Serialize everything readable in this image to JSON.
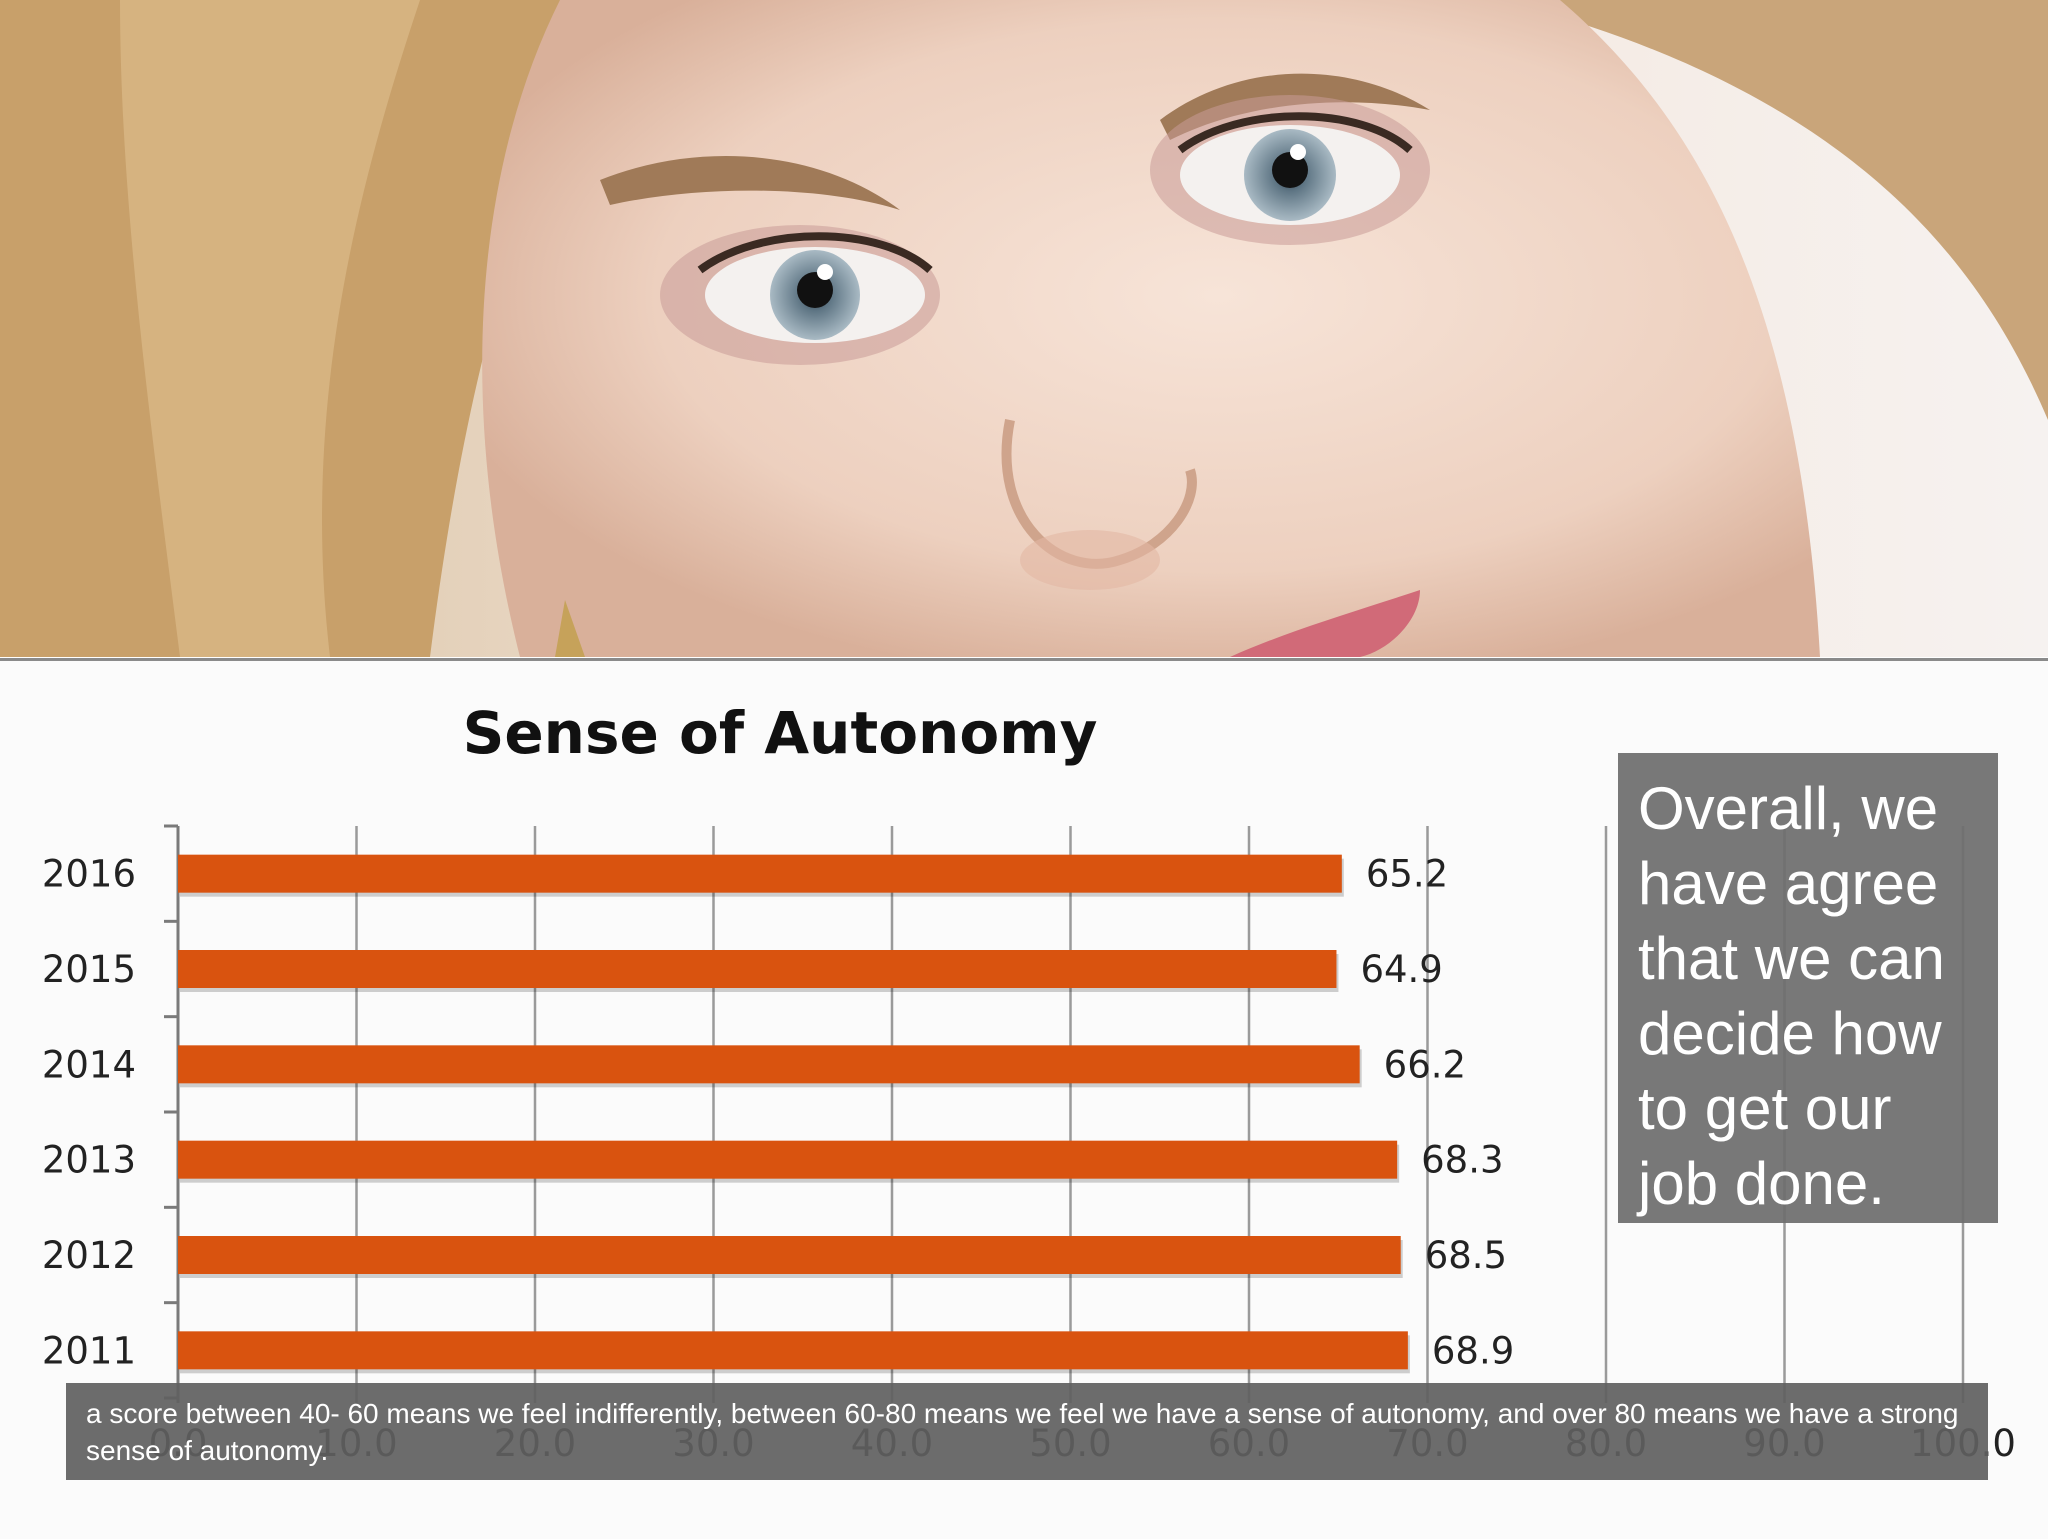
{
  "colors": {
    "bar": "#d9530f",
    "grid": "#9a9a9a",
    "callout_bg": "#6e6e6e",
    "footnote_bg": "#5f5f5f",
    "hair": "#c9a775",
    "skin": "#f0d6c6"
  },
  "photo": {
    "subject": "smiling-woman-close-up"
  },
  "chart_data": {
    "type": "bar",
    "orientation": "horizontal",
    "title": "Sense of Autonomy",
    "categories": [
      "2016",
      "2015",
      "2014",
      "2013",
      "2012",
      "2011"
    ],
    "values": [
      65.2,
      64.9,
      66.2,
      68.3,
      68.5,
      68.9
    ],
    "value_labels": [
      "65.2",
      "64.9",
      "66.2",
      "68.3",
      "68.5",
      "68.9"
    ],
    "xlim": [
      0,
      100
    ],
    "x_ticks": [
      0,
      10,
      20,
      30,
      40,
      50,
      60,
      70,
      80,
      90,
      100
    ],
    "x_tick_labels": [
      "0.0",
      "10.0",
      "20.0",
      "30.0",
      "40.0",
      "50.0",
      "60.0",
      "70.0",
      "80.0",
      "90.0",
      "100.0"
    ],
    "grid": "vertical",
    "legend": "none"
  },
  "callout": {
    "text": "Overall, we have agree that we can decide how to get our job done."
  },
  "footnote": {
    "text": "a score between 40- 60 means we feel indifferently, between 60-80 means we feel we have a sense of autonomy, and over 80 means we have a strong sense of autonomy."
  }
}
